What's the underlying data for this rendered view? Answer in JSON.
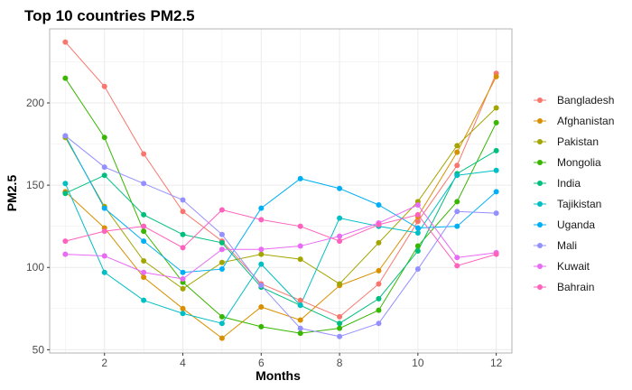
{
  "chart_data": {
    "type": "line",
    "title": "Top 10 countries PM2.5",
    "xlabel": "Months",
    "ylabel": "PM2.5",
    "xlim": [
      0.6,
      12.4
    ],
    "ylim": [
      48,
      245
    ],
    "x": [
      1,
      2,
      3,
      4,
      5,
      6,
      7,
      8,
      9,
      10,
      11,
      12
    ],
    "xticks": [
      2,
      4,
      6,
      8,
      10,
      12
    ],
    "yticks": [
      50,
      100,
      150,
      200
    ],
    "grid": true,
    "legend_position": "right",
    "series": [
      {
        "name": "Bangladesh",
        "color": "#F8766D",
        "values": [
          237,
          210,
          169,
          134,
          116,
          90,
          80,
          70,
          90,
          128,
          162,
          218
        ]
      },
      {
        "name": "Afghanistan",
        "color": "#D89000",
        "values": [
          146,
          124,
          94,
          75,
          57,
          76,
          68,
          89,
          98,
          131,
          170,
          216
        ]
      },
      {
        "name": "Pakistan",
        "color": "#A3A500",
        "values": [
          179,
          137,
          104,
          87,
          103,
          108,
          105,
          90,
          115,
          140,
          174,
          197
        ]
      },
      {
        "name": "Mongolia",
        "color": "#39B600",
        "values": [
          215,
          179,
          122,
          91,
          70,
          64,
          60,
          63,
          74,
          113,
          140,
          188
        ]
      },
      {
        "name": "India",
        "color": "#00BF7D",
        "values": [
          145,
          156,
          132,
          120,
          115,
          88,
          77,
          66,
          81,
          110,
          157,
          171
        ]
      },
      {
        "name": "Tajikistan",
        "color": "#00BFC4",
        "values": [
          151,
          97,
          80,
          72,
          66,
          102,
          77,
          130,
          125,
          121,
          156,
          159
        ]
      },
      {
        "name": "Uganda",
        "color": "#00B0F6",
        "values": [
          180,
          136,
          116,
          97,
          99,
          136,
          154,
          148,
          138,
          124,
          125,
          146
        ]
      },
      {
        "name": "Mali",
        "color": "#9590FF",
        "values": [
          180,
          161,
          151,
          141,
          120,
          89,
          63,
          58,
          66,
          99,
          134,
          133
        ]
      },
      {
        "name": "Kuwait",
        "color": "#E76BF3",
        "values": [
          108,
          107,
          97,
          93,
          111,
          111,
          113,
          119,
          127,
          138,
          106,
          109
        ]
      },
      {
        "name": "Bahrain",
        "color": "#FF62BC",
        "values": [
          116,
          122,
          125,
          112,
          135,
          129,
          125,
          116,
          126,
          132,
          101,
          108
        ]
      }
    ]
  }
}
